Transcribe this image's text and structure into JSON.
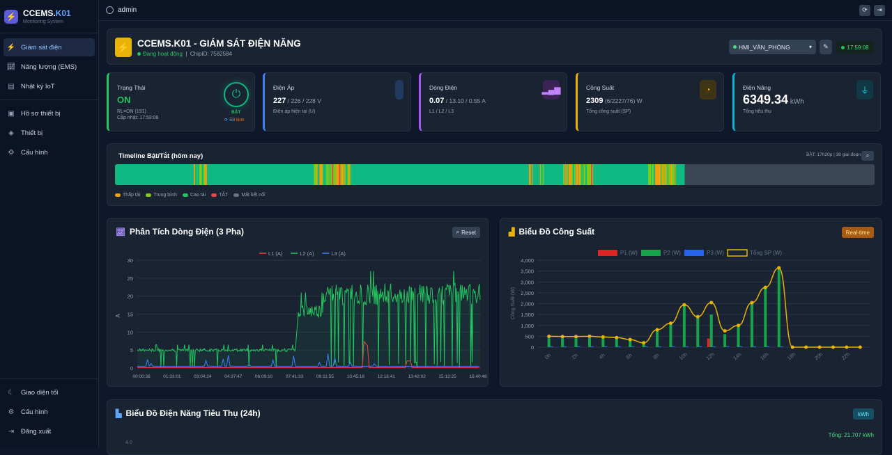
{
  "brand": {
    "name": "CCEMS.",
    "name_accent": "K01",
    "subtitle": "Monitoring System",
    "logo_icon": "bolt-icon"
  },
  "nav": {
    "items": [
      {
        "label": "Giám sát điện",
        "icon": "bolt-icon",
        "active": true
      },
      {
        "label": "Năng lượng (EMS)",
        "icon": "chart-line-icon"
      },
      {
        "label": "Nhật ký IoT",
        "icon": "database-icon"
      },
      {
        "label": "Hồ sơ thiết bị",
        "icon": "id-card-icon"
      },
      {
        "label": "Thiết bị",
        "icon": "cube-icon"
      },
      {
        "label": "Cấu hình",
        "icon": "gear-icon"
      }
    ],
    "bottom": [
      {
        "label": "Giao diện tối",
        "icon": "moon-icon"
      },
      {
        "label": "Cấu hình",
        "icon": "gear-icon"
      },
      {
        "label": "Đăng xuất",
        "icon": "logout-icon"
      }
    ]
  },
  "topbar": {
    "user": "admin"
  },
  "header": {
    "title": "CCEMS.K01 - GIÁM SÁT ĐIỆN NĂNG",
    "status": "Đang hoạt động",
    "chip": "ChipID: 7582584",
    "device": "HMI_VĂN_PHÒNG",
    "time": "17:59:08"
  },
  "stats": [
    {
      "label": "Trạng Thái",
      "value": "ON",
      "sub1": "RL=ON (191)",
      "sub2": "Cập nhật: 17:59:08",
      "power_label": "BẬT",
      "sync": "8 lệnh",
      "color": "#22c55e"
    },
    {
      "label": "Điện Áp",
      "value": "227",
      "value_rest": " / 226 / 228 V",
      "sub": "Điện áp hiện tại (U)",
      "color": "#3b82f6"
    },
    {
      "label": "Dòng Điện",
      "value": "0.07",
      "value_rest": " / 13.10 / 0.55 A",
      "sub": "L1 / L2 / L3",
      "color": "#a855f7"
    },
    {
      "label": "Công Suất",
      "value": "2309",
      "value_rest": " (6/2227/76) W",
      "sub": "Tổng công suất (SP)",
      "color": "#eab308"
    },
    {
      "label": "Điện Năng",
      "value": "6349.34",
      "value_rest": " kWh",
      "sub": "Tổng tiêu thụ",
      "color": "#06b6d4"
    }
  ],
  "timeline": {
    "title": "Timeline Bật/Tắt (hôm nay)",
    "info": "BẬT: 17h20p | 38 giai đoạn",
    "legend": [
      {
        "label": "Thấp tải",
        "color": "#f59e0b"
      },
      {
        "label": "Trung bình",
        "color": "#84cc16"
      },
      {
        "label": "Cao tải",
        "color": "#22c55e"
      },
      {
        "label": "TẮT",
        "color": "#ef4444"
      },
      {
        "label": "Mất kết nối",
        "color": "#6b7280"
      }
    ],
    "on_fraction": 0.75
  },
  "current_chart": {
    "title": "Phân Tích Dòng Điện (3 Pha)",
    "reset": "Reset"
  },
  "power_chart": {
    "title": "Biểu Đồ Công Suất",
    "badge": "Real-time"
  },
  "energy_chart": {
    "title": "Biểu Đồ Điện Năng Tiêu Thụ (24h)",
    "badge": "kWh",
    "total": "Tổng: 21.707 kWh",
    "ytick": "4.0"
  },
  "chart_data": [
    {
      "type": "line",
      "title": "Phân Tích Dòng Điện (3 Pha)",
      "ylabel": "A",
      "ylim": [
        0,
        30
      ],
      "yticks": [
        0,
        5,
        10,
        15,
        20,
        25,
        30
      ],
      "x": [
        "00:00:38",
        "01:33:01",
        "03:04:24",
        "04:37:47",
        "06:09:10",
        "07:41:33",
        "09:11:55",
        "10:45:18",
        "12:16:41",
        "13:42:02",
        "15:12:25",
        "16:40:48"
      ],
      "series": [
        {
          "name": "L1 (A)",
          "color": "#ef4444",
          "typical": 0.1
        },
        {
          "name": "L2 (A)",
          "color": "#22c55e",
          "typical_night": 5,
          "typical_day": 20
        },
        {
          "name": "L3 (A)",
          "color": "#3b82f6",
          "typical": 0.5
        }
      ]
    },
    {
      "type": "bar",
      "title": "Biểu Đồ Công Suất",
      "ylabel": "Công Suất (W)",
      "ylim": [
        0,
        4000
      ],
      "yticks": [
        "0",
        "500",
        "1,000",
        "1,500",
        "2,000",
        "2,500",
        "3,000",
        "3,500",
        "4,000"
      ],
      "categories": [
        "0h",
        "1h",
        "2h",
        "3h",
        "4h",
        "5h",
        "6h",
        "7h",
        "8h",
        "9h",
        "10h",
        "11h",
        "12h",
        "13h",
        "14h",
        "15h",
        "16h",
        "17h",
        "18h",
        "19h",
        "20h",
        "21h",
        "22h",
        "23h"
      ],
      "xticks": [
        "0h",
        "2h",
        "4h",
        "6h",
        "8h",
        "10h",
        "12h",
        "14h",
        "16h",
        "18h",
        "20h",
        "22h"
      ],
      "series": [
        {
          "name": "P1 (W)",
          "color": "#dc2626",
          "values": [
            0,
            0,
            0,
            0,
            0,
            0,
            0,
            0,
            0,
            0,
            0,
            0,
            400,
            0,
            0,
            0,
            0,
            0,
            0,
            0,
            0,
            0,
            0,
            0
          ]
        },
        {
          "name": "P2 (W)",
          "color": "#16a34a",
          "values": [
            450,
            450,
            450,
            420,
            400,
            380,
            300,
            150,
            750,
            1050,
            1900,
            1350,
            1500,
            600,
            950,
            2000,
            2700,
            3600,
            0,
            0,
            0,
            0,
            0,
            0
          ]
        },
        {
          "name": "P3 (W)",
          "color": "#2563eb",
          "values": [
            40,
            40,
            40,
            40,
            40,
            40,
            40,
            40,
            40,
            40,
            40,
            40,
            40,
            40,
            40,
            40,
            40,
            40,
            0,
            0,
            0,
            0,
            0,
            0
          ]
        },
        {
          "name": "Tổng SP (W)",
          "color": "#eab308",
          "values": [
            500,
            490,
            490,
            500,
            470,
            440,
            350,
            200,
            800,
            1100,
            1950,
            1400,
            2050,
            750,
            1000,
            2050,
            2750,
            3650,
            0,
            0,
            0,
            0,
            0,
            0
          ]
        }
      ]
    }
  ]
}
